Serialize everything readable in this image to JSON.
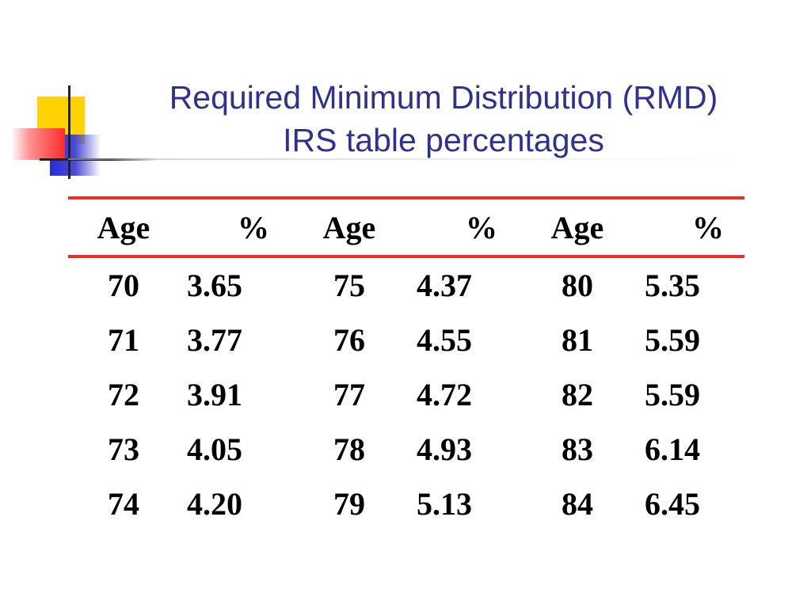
{
  "slide": {
    "title_line1": "Required Minimum Distribution (RMD)",
    "title_line2": "IRS table percentages"
  },
  "table": {
    "headers": [
      "Age",
      "%",
      "Age",
      "%",
      "Age",
      "%"
    ],
    "rows": [
      [
        "70",
        "3.65",
        "75",
        "4.37",
        "80",
        "5.35"
      ],
      [
        "71",
        "3.77",
        "76",
        "4.55",
        "81",
        "5.59"
      ],
      [
        "72",
        "3.91",
        "77",
        "4.72",
        "82",
        "5.59"
      ],
      [
        "73",
        "4.05",
        "78",
        "4.93",
        "83",
        "6.14"
      ],
      [
        "74",
        "4.20",
        "79",
        "5.13",
        "84",
        "6.45"
      ]
    ]
  },
  "colors": {
    "title": "#2e3192",
    "rule": "#e4322b",
    "logo_yellow": "#ffd200",
    "logo_blue": "#2a2ad8",
    "logo_red": "#ff2b2b"
  }
}
